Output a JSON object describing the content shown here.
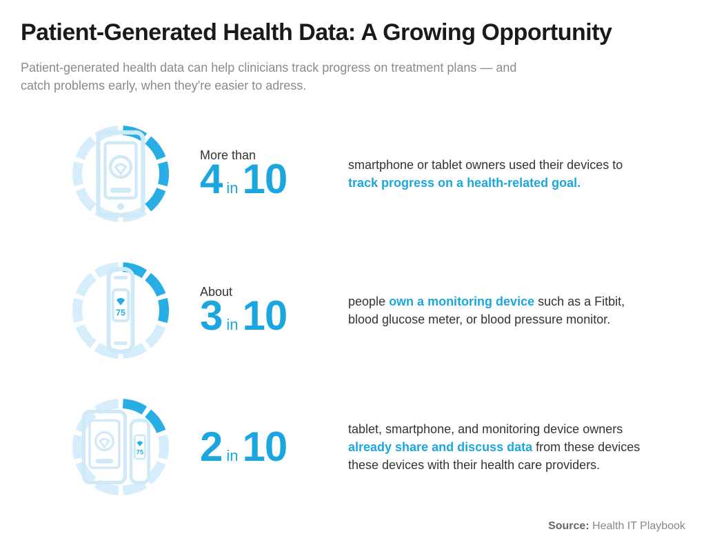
{
  "title": "Patient-Generated Health Data: A Growing Opportunity",
  "subtitle": "Patient-generated health data can help clinicians track progress on treatment plans — and catch problems early, when they're easier to adress.",
  "colors": {
    "accent": "#1ca6e0",
    "accent_fill": "#28aee4",
    "segment_off": "#d6eefb",
    "icon_light": "#cfe9f7",
    "text_dark": "#1a1a1a",
    "text_muted": "#8a8a8a",
    "background": "#ffffff"
  },
  "typography": {
    "title_fontsize": 34,
    "title_weight": 700,
    "subtitle_fontsize": 18,
    "ratio_big_fontsize": 60,
    "ratio_big_weight": 700,
    "ratio_in_fontsize": 22,
    "desc_fontsize": 18
  },
  "donut": {
    "total_segments": 10,
    "outer_radius": 70,
    "stroke_width": 14,
    "gap_deg": 6
  },
  "stats": [
    {
      "prefix": "More than",
      "numerator": "4",
      "in": "in",
      "denominator": "10",
      "filled_segments": 4,
      "icon": "smartphone",
      "desc_pre": "smartphone or tablet owners used their devices to ",
      "desc_hl": "track progress on a health-related goal.",
      "desc_post": ""
    },
    {
      "prefix": "About",
      "numerator": "3",
      "in": "in",
      "denominator": "10",
      "filled_segments": 3,
      "icon": "tracker",
      "desc_pre": "people ",
      "desc_hl": "own a monitoring device",
      "desc_post": " such as a Fitbit, blood glucose meter, or blood pressure monitor."
    },
    {
      "prefix": "",
      "numerator": "2",
      "in": "in",
      "denominator": "10",
      "filled_segments": 2,
      "icon": "phone-tracker",
      "desc_pre": "tablet, smartphone, and monitoring device owners ",
      "desc_hl": "already share and discuss data",
      "desc_post": " from these devices these devices with their health care providers."
    }
  ],
  "source": {
    "label": "Source:",
    "value": "Health IT Playbook"
  }
}
